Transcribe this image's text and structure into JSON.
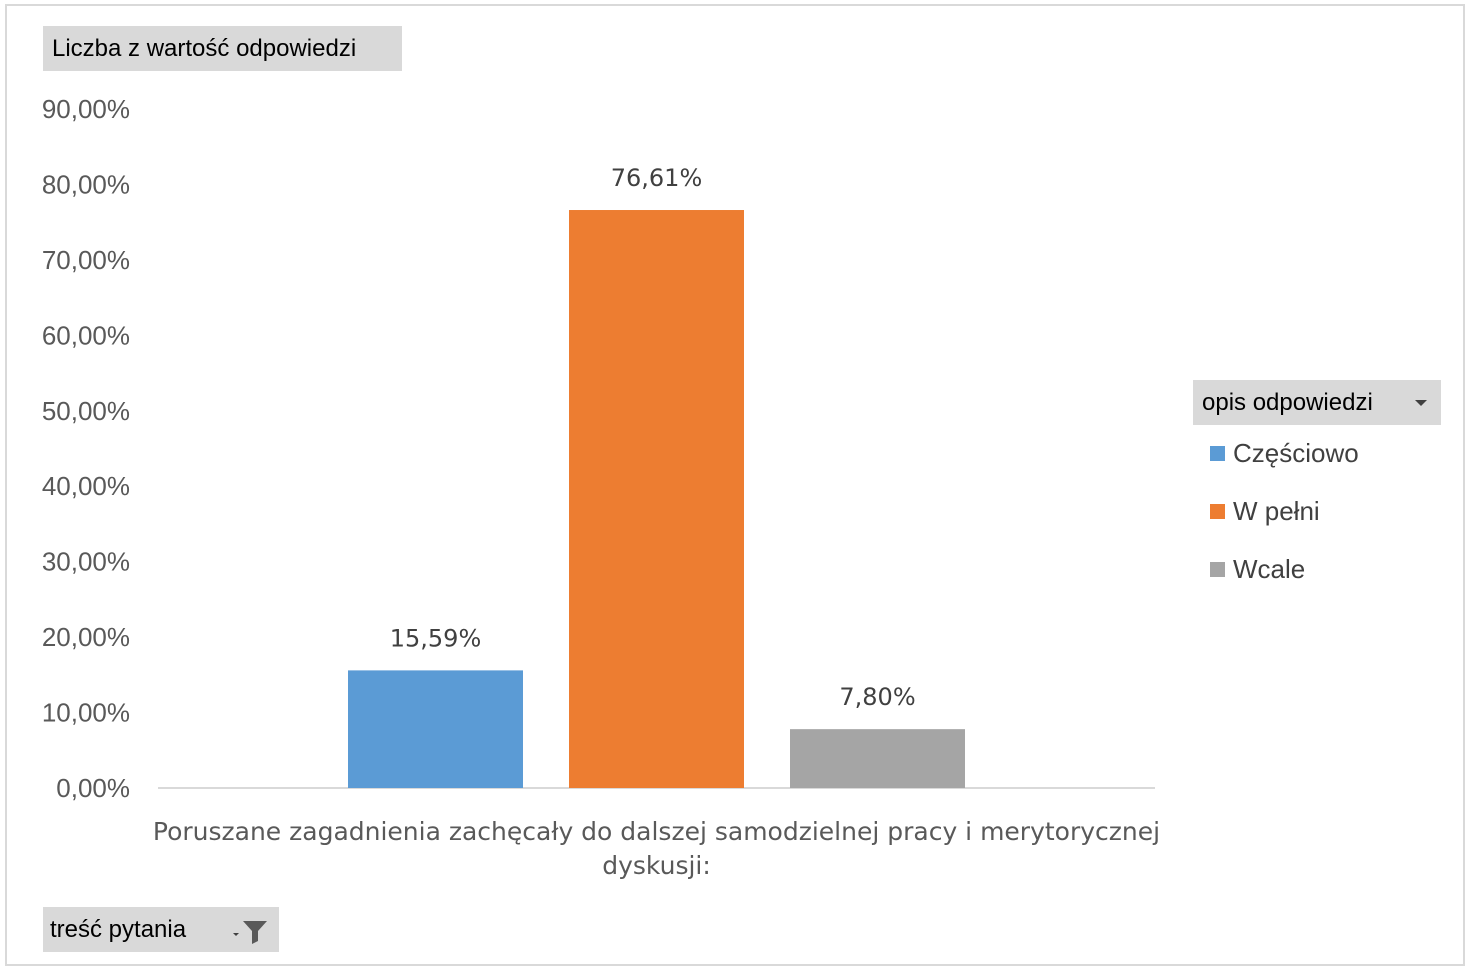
{
  "value_field_button": {
    "label": "Liczba z wartość odpowiedzi"
  },
  "legend_field_button": {
    "label": "opis odpowiedzi"
  },
  "axis_field_button": {
    "label": "treść pytania"
  },
  "chart_data": {
    "type": "bar",
    "categories": [
      "Poruszane zagadnienia zachęcały do dalszej samodzielnej pracy i merytorycznej dyskusji:"
    ],
    "category_label_lines": [
      "Poruszane zagadnienia zachęcały do dalszej samodzielnej pracy i merytorycznej",
      "dyskusji:"
    ],
    "series": [
      {
        "name": "Częściowo",
        "values": [
          15.59
        ],
        "label": "15,59%",
        "color": "#5b9bd5"
      },
      {
        "name": "W pełni",
        "values": [
          76.61
        ],
        "label": "76,61%",
        "color": "#ed7d31"
      },
      {
        "name": "Wcale",
        "values": [
          7.8
        ],
        "label": "7,80%",
        "color": "#a5a5a5"
      }
    ],
    "ylim": [
      0,
      90
    ],
    "yticks": [
      0,
      10,
      20,
      30,
      40,
      50,
      60,
      70,
      80,
      90
    ],
    "ytick_labels": [
      "0,00%",
      "10,00%",
      "20,00%",
      "30,00%",
      "40,00%",
      "50,00%",
      "60,00%",
      "70,00%",
      "80,00%",
      "90,00%"
    ],
    "grid": false,
    "legend_position": "right",
    "title": "",
    "xlabel": "",
    "ylabel": ""
  }
}
